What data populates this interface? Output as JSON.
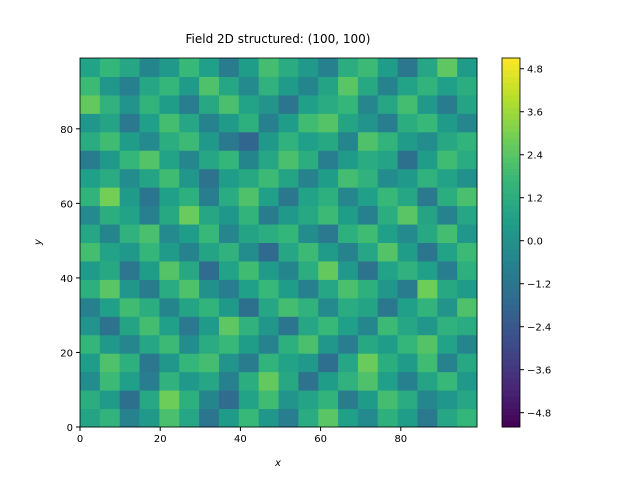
{
  "chart_data": {
    "type": "heatmap",
    "title": "Field 2D structured: (100, 100)",
    "x_label": "x",
    "y_label": "y",
    "xlim": [
      0,
      99
    ],
    "ylim": [
      0,
      99
    ],
    "xticks": [
      0,
      20,
      40,
      60,
      80
    ],
    "yticks": [
      0,
      20,
      40,
      60,
      80
    ],
    "colormap": "viridis",
    "clim": [
      -5.2,
      5.1
    ],
    "cticks": [
      {
        "value": -4.8,
        "label": "−4.8"
      },
      {
        "value": -3.6,
        "label": "−3.6"
      },
      {
        "value": -2.4,
        "label": "−2.4"
      },
      {
        "value": -1.2,
        "label": "−1.2"
      },
      {
        "value": 0,
        "label": "0.0"
      },
      1.2,
      2.4,
      3.6,
      4.8
    ],
    "z": [
      [
        0.8,
        1.5,
        -0.6,
        0.3,
        2.1,
        0.9,
        -1.2,
        0.4,
        1.7,
        0.2,
        -0.8,
        1.1,
        2.4,
        0.6,
        -0.3,
        1.3,
        0.5,
        -1.0,
        0.9,
        1.6
      ],
      [
        1.2,
        0.4,
        -1.4,
        1.0,
        2.8,
        1.3,
        -0.5,
        -1.6,
        0.7,
        1.9,
        0.1,
        0.8,
        1.5,
        -0.9,
        0.4,
        2.0,
        1.1,
        -0.4,
        0.2,
        0.9
      ],
      [
        -0.2,
        1.8,
        0.6,
        -0.8,
        1.4,
        0.3,
        0.9,
        -0.7,
        1.2,
        2.6,
        1.0,
        -1.3,
        0.5,
        1.4,
        2.2,
        0.6,
        -0.7,
        0.8,
        1.7,
        0.3
      ],
      [
        0.5,
        2.2,
        1.3,
        -1.1,
        0.2,
        1.6,
        2.0,
        0.1,
        -0.9,
        1.5,
        0.7,
        0.3,
        -1.5,
        0.9,
        2.7,
        1.2,
        0.4,
        1.9,
        -0.6,
        1.0
      ],
      [
        1.6,
        0.3,
        -0.4,
        0.9,
        1.8,
        -0.2,
        1.1,
        1.7,
        0.5,
        -0.6,
        1.3,
        2.1,
        0.2,
        -0.8,
        1.0,
        0.5,
        1.6,
        2.3,
        0.7,
        -0.5
      ],
      [
        0.1,
        -1.3,
        0.8,
        2.0,
        0.6,
        -1.0,
        0.4,
        2.5,
        1.4,
        0.2,
        -1.2,
        0.9,
        1.7,
        0.6,
        -0.4,
        1.8,
        0.9,
        0.2,
        1.4,
        1.1
      ],
      [
        -0.7,
        0.6,
        1.9,
        1.2,
        -0.5,
        0.8,
        1.5,
        0.3,
        -1.4,
        0.9,
        2.0,
        1.4,
        -0.3,
        1.1,
        0.8,
        -1.1,
        0.6,
        1.5,
        0.1,
        2.2
      ],
      [
        1.3,
        2.4,
        0.2,
        -0.9,
        1.1,
        2.2,
        0.0,
        -0.8,
        0.6,
        1.7,
        0.5,
        -0.7,
        0.9,
        2.1,
        1.3,
        0.2,
        -0.9,
        2.8,
        1.0,
        0.4
      ],
      [
        0.4,
        1.0,
        -1.1,
        0.5,
        2.3,
        1.0,
        -1.6,
        0.7,
        1.9,
        0.4,
        -0.5,
        1.2,
        2.6,
        0.3,
        -1.3,
        0.7,
        1.4,
        0.6,
        -0.8,
        1.3
      ],
      [
        2.0,
        0.7,
        0.3,
        1.6,
        0.4,
        -0.6,
        0.8,
        1.4,
        -0.2,
        -1.7,
        0.9,
        1.8,
        0.4,
        -0.6,
        0.9,
        2.3,
        0.5,
        -1.2,
        0.7,
        1.8
      ],
      [
        0.9,
        -0.5,
        1.4,
        2.1,
        -0.3,
        0.5,
        1.7,
        -0.4,
        0.8,
        1.2,
        1.6,
        -0.2,
        -1.0,
        1.3,
        1.9,
        0.6,
        -0.3,
        1.0,
        2.0,
        0.2
      ],
      [
        -0.3,
        1.2,
        0.7,
        -0.7,
        1.0,
        2.7,
        0.9,
        0.2,
        1.5,
        -0.9,
        0.3,
        1.0,
        1.8,
        0.5,
        -0.7,
        1.2,
        2.4,
        0.8,
        -0.6,
        0.9
      ],
      [
        1.5,
        2.9,
        0.4,
        -1.2,
        0.6,
        1.3,
        -0.8,
        1.1,
        2.2,
        0.6,
        -1.1,
        0.7,
        1.3,
        -0.4,
        0.6,
        1.7,
        0.9,
        -1.0,
        1.2,
        2.1
      ],
      [
        0.6,
        1.1,
        -0.2,
        0.8,
        1.9,
        0.2,
        -1.3,
        0.5,
        1.0,
        1.8,
        0.8,
        -0.6,
        0.5,
        2.0,
        1.4,
        -0.2,
        0.3,
        1.4,
        0.7,
        0.0
      ],
      [
        -0.9,
        0.3,
        1.6,
        2.3,
        0.7,
        -0.4,
        0.9,
        1.6,
        -0.5,
        0.9,
        2.1,
        1.2,
        -0.8,
        0.4,
        1.1,
        0.8,
        -1.4,
        0.5,
        1.9,
        1.1
      ],
      [
        1.1,
        1.9,
        0.5,
        -0.3,
        1.2,
        1.8,
        0.3,
        -1.0,
        -1.8,
        0.3,
        1.4,
        0.6,
        1.0,
        -0.5,
        2.2,
        1.5,
        0.4,
        -0.2,
        1.0,
        1.5
      ],
      [
        0.2,
        0.8,
        -1.0,
        0.6,
        2.0,
        0.9,
        -0.6,
        0.4,
        1.3,
        -0.7,
        0.5,
        1.9,
        2.3,
        0.8,
        0.1,
        -0.8,
        1.2,
        1.7,
        0.4,
        -0.4
      ],
      [
        2.6,
        1.4,
        0.1,
        1.5,
        0.5,
        -0.8,
        1.0,
        2.1,
        0.7,
        0.1,
        -1.2,
        0.6,
        1.1,
        1.6,
        -0.4,
        0.9,
        2.0,
        0.3,
        -0.9,
        0.8
      ],
      [
        1.8,
        0.2,
        -0.7,
        0.9,
        1.6,
        0.4,
        2.2,
        0.9,
        -0.3,
        1.4,
        0.4,
        -0.5,
        0.8,
        2.4,
        1.0,
        -0.6,
        0.7,
        1.5,
        0.6,
        1.2
      ],
      [
        0.7,
        1.6,
        0.9,
        -0.5,
        0.3,
        1.7,
        0.6,
        -0.9,
        0.5,
        2.0,
        1.1,
        0.3,
        -0.7,
        1.2,
        1.8,
        0.5,
        -1.1,
        0.9,
        2.5,
        0.4
      ]
    ]
  }
}
